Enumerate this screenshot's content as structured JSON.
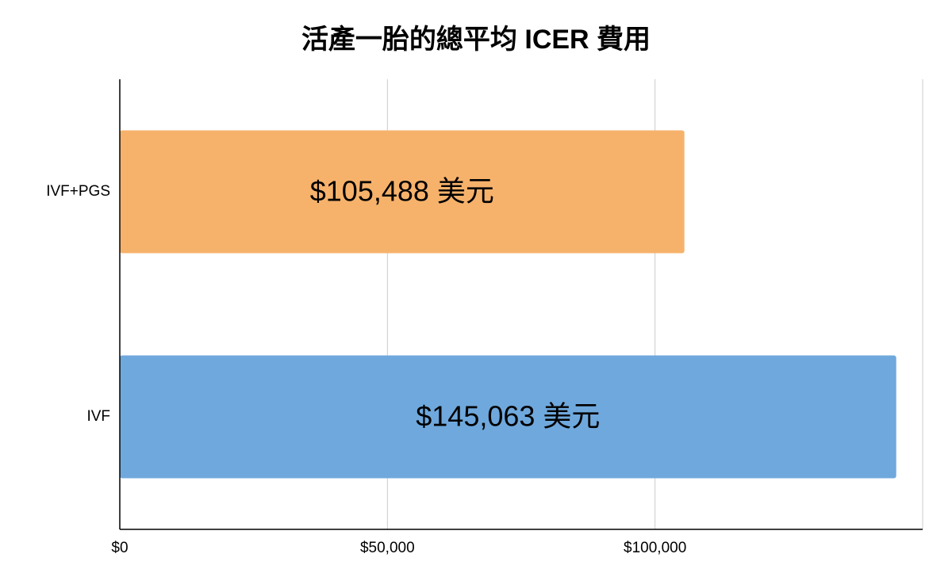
{
  "chart_data": {
    "type": "bar",
    "orientation": "horizontal",
    "title": "活產一胎的總平均 ICER 費用",
    "categories": [
      "IVF+PGS",
      "IVF"
    ],
    "values": [
      105488,
      145063
    ],
    "value_labels": [
      "$105,488 美元",
      "$145,063 美元"
    ],
    "colors": [
      "#f6b26b",
      "#6fa8dc"
    ],
    "xlim": [
      0,
      150000
    ],
    "xticks": [
      {
        "value": 0,
        "label": "$0"
      },
      {
        "value": 50000,
        "label": "$50,000"
      },
      {
        "value": 100000,
        "label": "$100,000"
      }
    ],
    "grid": true
  }
}
